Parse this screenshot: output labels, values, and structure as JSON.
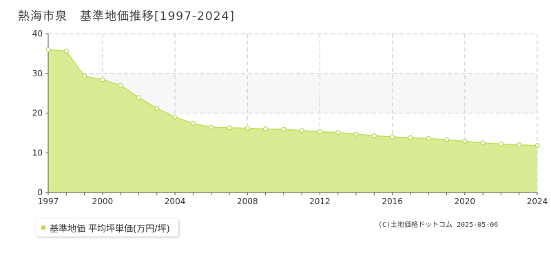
{
  "header": {
    "title": "熱海市泉　基準地価推移[1997-2024]"
  },
  "legend": {
    "label": "基準地価 平均坪単価(万円/坪)"
  },
  "footer": {
    "copyright": "(C)土地価格ドットコム 2025-05-06"
  },
  "colors": {
    "fill": "#d9ec93",
    "line": "#bde05a",
    "marker_fill": "#ffffff",
    "marker_stroke": "#b2d84e",
    "band": "#f7f7f9",
    "grid": "#cccccc",
    "axis": "#555555",
    "legend_swatch": "#b7dc52"
  },
  "chart_data": {
    "type": "area",
    "title": "熱海市泉　基準地価推移[1997-2024]",
    "xlabel": "",
    "ylabel": "",
    "x": [
      1997,
      1998,
      1999,
      2000,
      2001,
      2002,
      2003,
      2004,
      2005,
      2006,
      2007,
      2008,
      2009,
      2010,
      2011,
      2012,
      2013,
      2014,
      2015,
      2016,
      2017,
      2018,
      2019,
      2020,
      2021,
      2022,
      2023,
      2024
    ],
    "series": [
      {
        "name": "基準地価 平均坪単価(万円/坪)",
        "values": [
          36.0,
          35.6,
          29.3,
          28.4,
          27.0,
          23.9,
          21.2,
          19.0,
          17.4,
          16.4,
          16.3,
          16.2,
          16.0,
          15.9,
          15.6,
          15.3,
          15.1,
          14.7,
          14.3,
          14.0,
          13.8,
          13.6,
          13.3,
          12.9,
          12.5,
          12.2,
          12.0,
          11.8
        ]
      }
    ],
    "xlim": [
      1997,
      2024
    ],
    "ylim": [
      0,
      40
    ],
    "x_ticks": [
      "1997",
      "2000",
      "2004",
      "2008",
      "2012",
      "2016",
      "2020",
      "2024"
    ],
    "y_ticks": [
      "0",
      "10",
      "20",
      "30",
      "40"
    ],
    "grid": true,
    "legend_position": "bottom-left"
  }
}
